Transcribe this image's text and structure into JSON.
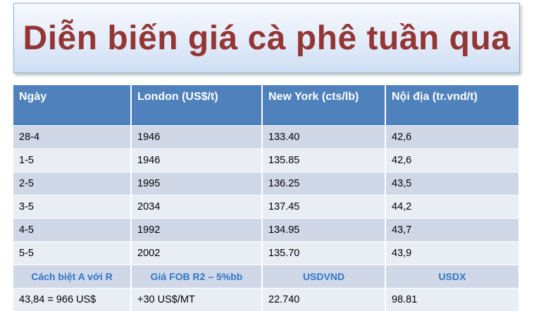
{
  "title": "Diễn biến giá cà phê tuần qua",
  "table": {
    "headers": [
      "Ngày",
      "London (US$/t)",
      "New York (cts/lb)",
      "Nội địa (tr.vnd/t)"
    ],
    "rows": [
      [
        "28-4",
        "1946",
        "133.40",
        "42,6"
      ],
      [
        "1-5",
        "1946",
        "135.85",
        "42,6"
      ],
      [
        "2-5",
        "1995",
        "136.25",
        "43,5"
      ],
      [
        "3-5",
        "2034",
        "137.45",
        "44,2"
      ],
      [
        "4-5",
        "1992",
        "134.95",
        "43,7"
      ],
      [
        "5-5",
        "2002",
        "135.70",
        "43,9"
      ]
    ],
    "sub_headers": [
      "Cách biệt A với R",
      "Giá FOB R2 – 5%bb",
      "USDVND",
      "USDX"
    ],
    "footer_row": [
      "43,84 = 966 US$",
      "+30 US$/MT",
      "22.740",
      "98.81"
    ]
  },
  "colors": {
    "title_text": "#943634",
    "header_bg": "#4f81bd",
    "row_odd": "#d0d8e8",
    "row_even": "#e9edf4",
    "sub_header_text": "#2e75c8"
  }
}
